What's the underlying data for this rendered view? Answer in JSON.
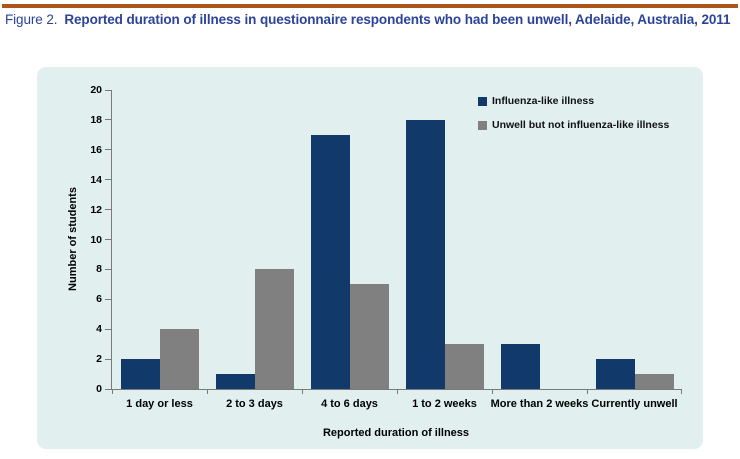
{
  "figure": {
    "label": "Figure 2.",
    "title": "Reported duration of illness in questionnaire respondents who had been unwell, Adelaide, Australia, 2011"
  },
  "colors": {
    "accent_rule": "#AD561C",
    "title_text": "#2B4399",
    "panel_bg": "#E1EFEF",
    "axis": "#7A7A7A",
    "series_influenza": "#113A6B",
    "series_unwell": "#808080"
  },
  "chart_data": {
    "type": "bar",
    "categories": [
      "1 day or less",
      "2 to 3 days",
      "4 to 6 days",
      "1 to 2 weeks",
      "More than 2 weeks",
      "Currently unwell"
    ],
    "series": [
      {
        "name": "Influenza-like illness",
        "color": "#113A6B",
        "values": [
          2,
          1,
          17,
          18,
          3,
          2
        ]
      },
      {
        "name": "Unwell but not influenza-like illness",
        "color": "#808080",
        "values": [
          4,
          8,
          7,
          3,
          0,
          1
        ]
      }
    ],
    "xlabel": "Reported duration of illness",
    "ylabel": "Number of students",
    "ylim": [
      0,
      20
    ],
    "yticks": [
      0,
      2,
      4,
      6,
      8,
      10,
      12,
      14,
      16,
      18,
      20
    ],
    "grid": false,
    "legend_position": "top-right"
  }
}
